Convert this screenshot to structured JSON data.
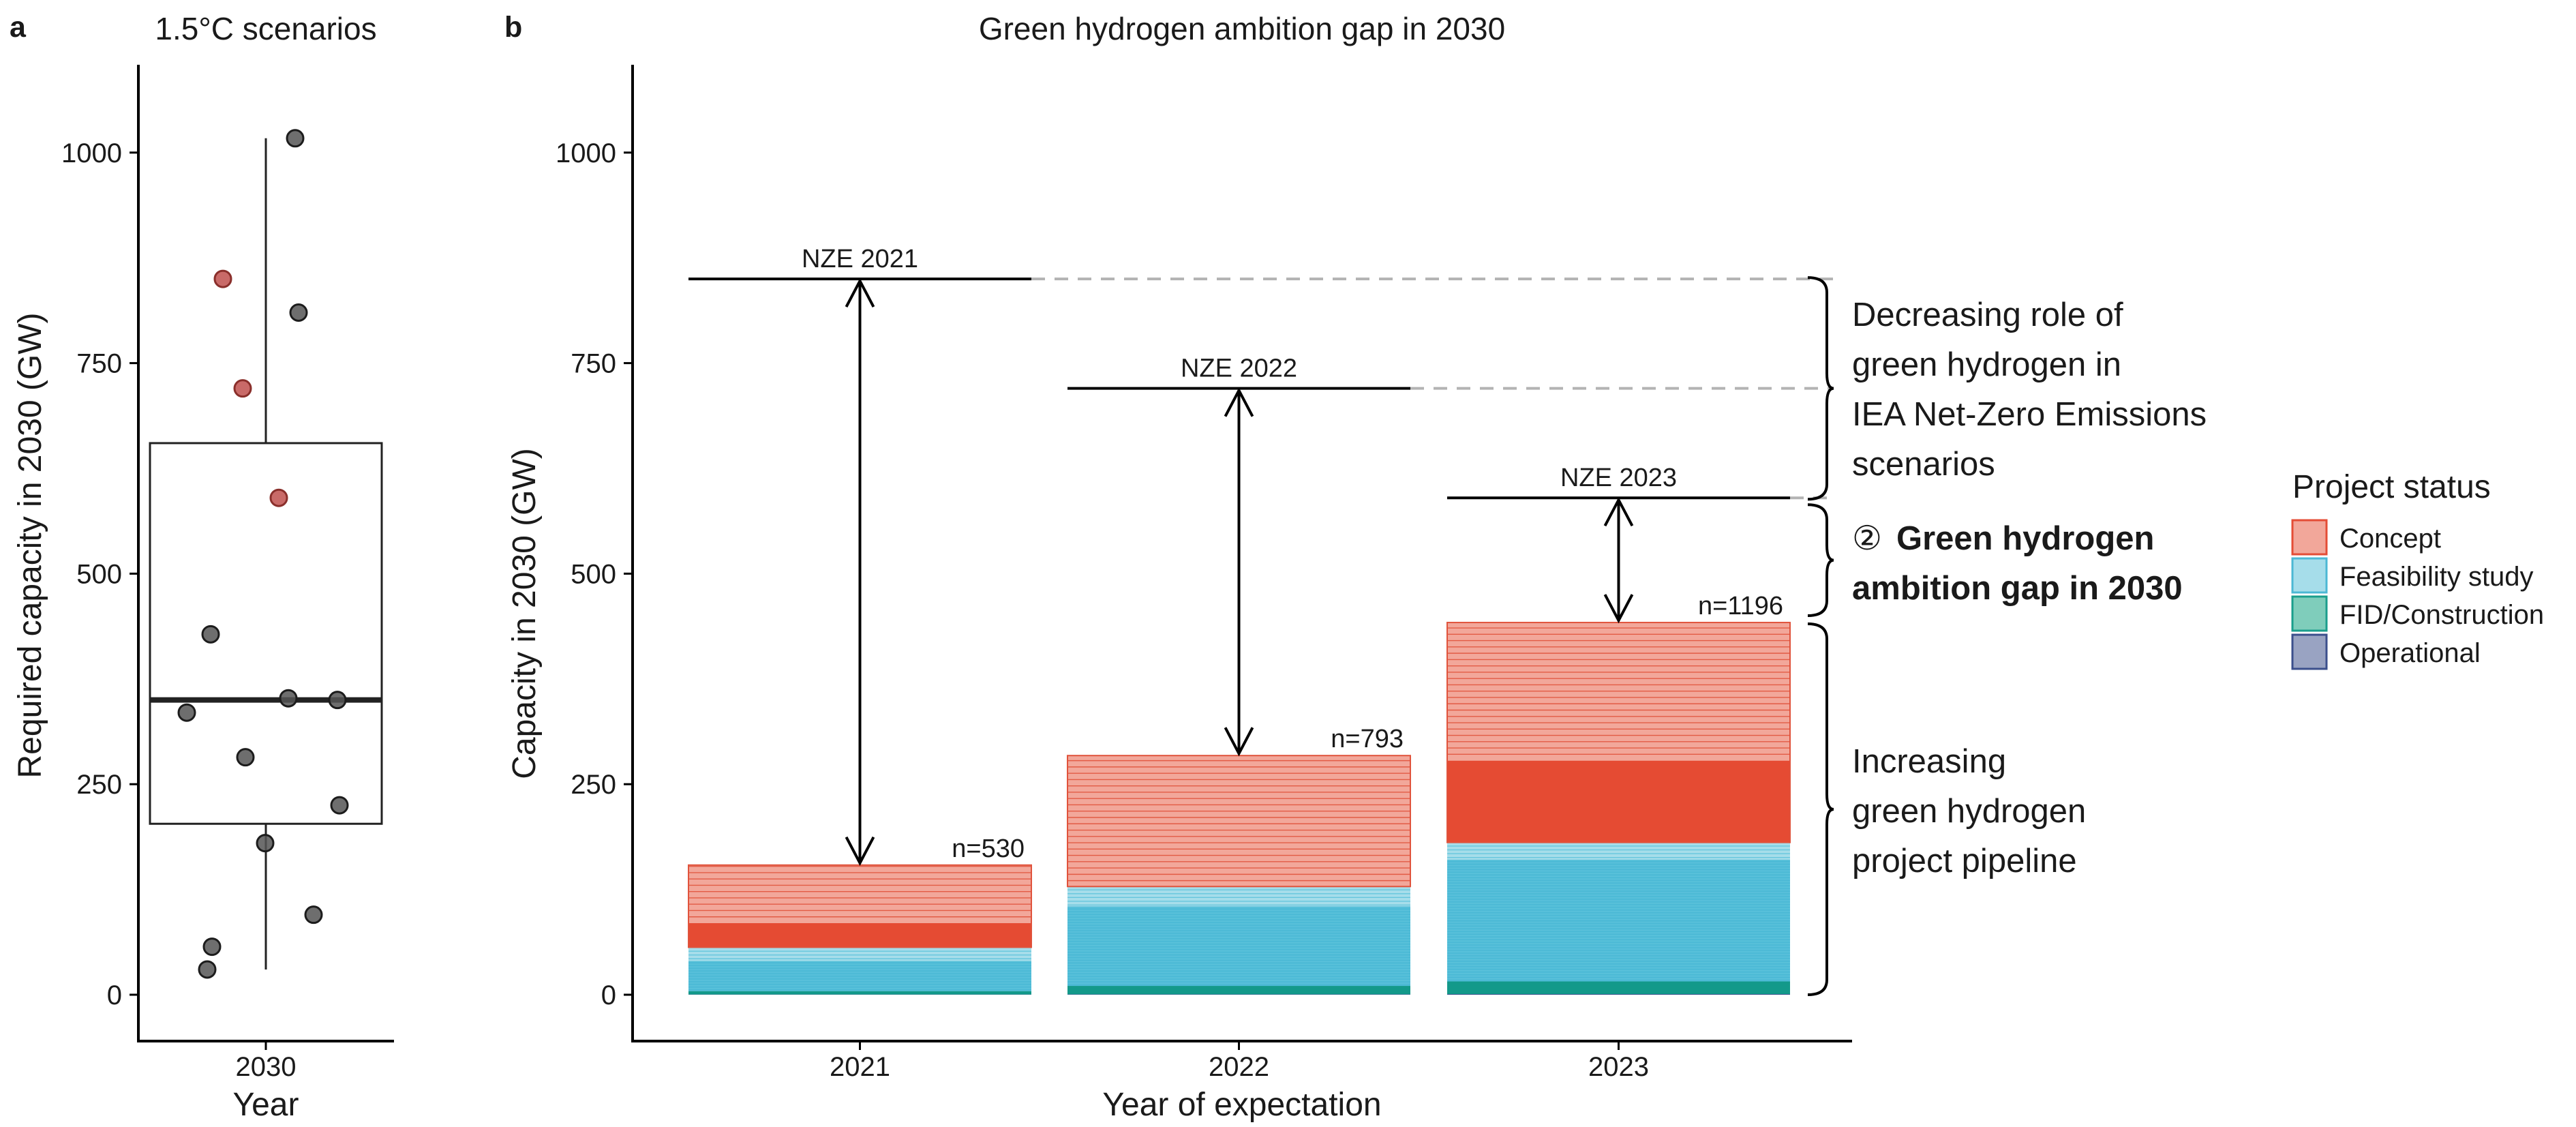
{
  "panel_a": {
    "letter": "a",
    "title": "1.5°C scenarios",
    "xlabel": "Year",
    "ylabel": "Required capacity in 2030 (GW)",
    "x_tick": "2030",
    "y_ticks": [
      "0",
      "250",
      "500",
      "750",
      "1000"
    ]
  },
  "panel_b": {
    "letter": "b",
    "title": "Green hydrogen ambition gap in 2030",
    "xlabel": "Year of expectation",
    "ylabel": "Capacity in 2030 (GW)",
    "y_ticks": [
      "0",
      "250",
      "500",
      "750",
      "1000"
    ],
    "x_ticks": [
      "2021",
      "2022",
      "2023"
    ],
    "nze_labels": [
      "NZE 2021",
      "NZE 2022",
      "NZE 2023"
    ],
    "n_labels": [
      "n=530",
      "n=793",
      "n=1196"
    ],
    "annotations": {
      "decreasing": [
        "Decreasing role of",
        "green hydrogen in",
        "IEA Net-Zero Emissions",
        "scenarios"
      ],
      "gap_symbol": "②",
      "gap": [
        "Green hydrogen",
        "ambition gap in 2030"
      ],
      "increasing": [
        "Increasing",
        "green hydrogen",
        "project pipeline"
      ]
    }
  },
  "legend": {
    "title": "Project status",
    "items": [
      {
        "label": "Concept",
        "color": "#F2A79A",
        "stroke": "#E44D36"
      },
      {
        "label": "Feasibility study",
        "color": "#A6DDEA",
        "stroke": "#4CB8D4"
      },
      {
        "label": "FID/Construction",
        "color": "#7FCDBB",
        "stroke": "#1A9E8C"
      },
      {
        "label": "Operational",
        "color": "#99A3C2",
        "stroke": "#3B4F8C"
      }
    ]
  },
  "colors": {
    "concept_light": "#F2A79A",
    "concept_dark": "#E54B33",
    "concept_line": "#E0533C",
    "feasibility_light": "#A6DDEA",
    "feasibility_dark": "#4DBAD6",
    "fid": "#13998A",
    "point_grey": "#555555",
    "point_red": "#C0504D",
    "dashed": "#b3b3b3"
  },
  "chart_data": [
    {
      "type": "box",
      "title": "1.5°C scenarios",
      "xlabel": "Year",
      "ylabel": "Required capacity in 2030 (GW)",
      "category": "2030",
      "ylim": [
        -50,
        1100
      ],
      "box": {
        "min": 30,
        "q1": 203,
        "median": 350,
        "q3": 655,
        "max": 1017
      },
      "points": [
        {
          "y": 1017,
          "highlight": false
        },
        {
          "y": 850,
          "highlight": true
        },
        {
          "y": 810,
          "highlight": false
        },
        {
          "y": 720,
          "highlight": true
        },
        {
          "y": 590,
          "highlight": true
        },
        {
          "y": 428,
          "highlight": false
        },
        {
          "y": 352,
          "highlight": false
        },
        {
          "y": 350,
          "highlight": false
        },
        {
          "y": 335,
          "highlight": false
        },
        {
          "y": 282,
          "highlight": false
        },
        {
          "y": 225,
          "highlight": false
        },
        {
          "y": 180,
          "highlight": false
        },
        {
          "y": 95,
          "highlight": false
        },
        {
          "y": 57,
          "highlight": false
        },
        {
          "y": 30,
          "highlight": false
        }
      ]
    },
    {
      "type": "bar",
      "title": "Green hydrogen ambition gap in 2030",
      "xlabel": "Year of expectation",
      "ylabel": "Capacity in 2030 (GW)",
      "categories": [
        "2021",
        "2022",
        "2023"
      ],
      "ylim": [
        -50,
        1100
      ],
      "n_projects": [
        530,
        793,
        1196
      ],
      "series": [
        {
          "name": "Operational",
          "values": [
            0.3,
            0.5,
            0.8
          ]
        },
        {
          "name": "FID/Construction",
          "values": [
            4,
            10,
            15
          ]
        },
        {
          "name": "Feasibility study",
          "values": [
            52,
            118,
            165
          ]
        },
        {
          "name": "Concept",
          "values": [
            98,
            156,
            262
          ]
        }
      ],
      "totals": [
        154,
        284,
        442
      ],
      "concept_dense_top": [
        85,
        128,
        278
      ],
      "feasibility_dense_top": [
        40,
        105,
        160
      ],
      "nze_targets": [
        850,
        720,
        590
      ],
      "nze_labels": [
        "NZE 2021",
        "NZE 2022",
        "NZE 2023"
      ]
    }
  ]
}
